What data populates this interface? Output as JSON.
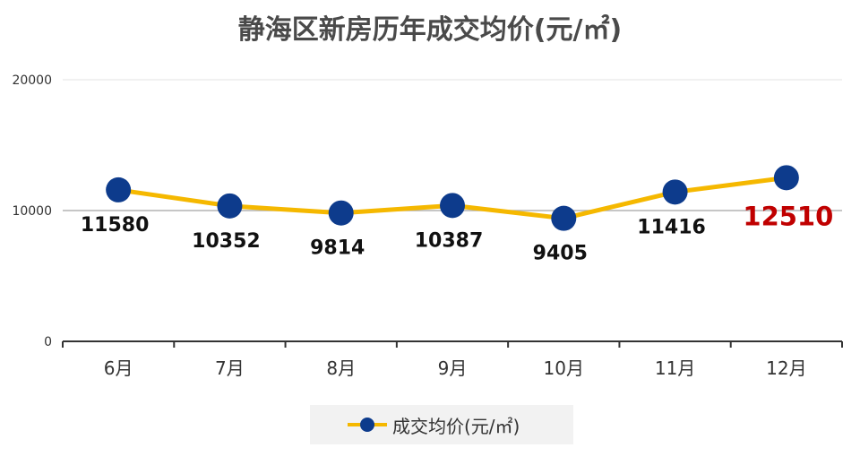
{
  "chart_data": {
    "type": "line",
    "title": "静海区新房历年成交均价(元/㎡)",
    "categories": [
      "6月",
      "7月",
      "8月",
      "9月",
      "10月",
      "11月",
      "12月"
    ],
    "series": [
      {
        "name": "成交均价(元/㎡)",
        "values": [
          11580,
          10352,
          9814,
          10387,
          9405,
          11416,
          12510
        ],
        "value_labels": [
          "11580",
          "10352",
          "9814",
          "10387",
          "9405",
          "11416",
          "12510"
        ]
      }
    ],
    "yticks": [
      "20000",
      "10000",
      "0"
    ],
    "ylim": [
      0,
      20000
    ],
    "grid": true,
    "legend": "bottom-center",
    "colors": {
      "line": "#f5b800",
      "marker": "#0d3b8c",
      "label": "#111111",
      "highlight_label": "#c00000",
      "title": "#4a4a4a"
    }
  }
}
